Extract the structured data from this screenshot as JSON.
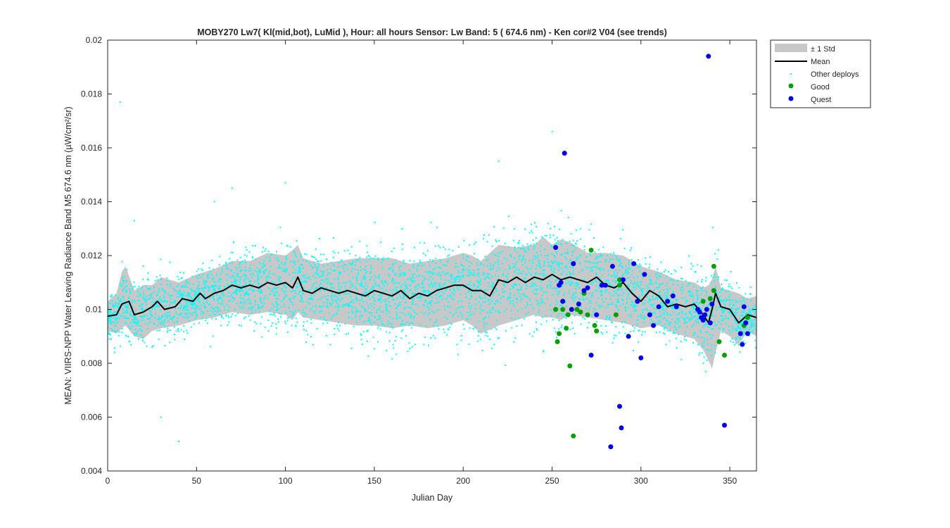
{
  "chart_data": {
    "type": "scatter",
    "title": "MOBY270   Lw7( Kl(mid,bot), LuMid ),   Hour: all hours  Sensor: Lw Band: 5 ( 674.6 nm)  - Ken cor#2 V04 (see trends)",
    "xlabel": "Julian Day",
    "ylabel": "MEAN: VIIRS-NPP Water Leaving Radiance Band M5 674.6 nm (µW/cm²/sr)",
    "xlim": [
      0,
      365
    ],
    "ylim": [
      0.004,
      0.02
    ],
    "xticks": [
      0,
      50,
      100,
      150,
      200,
      250,
      300,
      350
    ],
    "yticks": [
      0.004,
      0.006,
      0.008,
      0.01,
      0.012,
      0.014,
      0.016,
      0.018,
      0.02
    ],
    "xtick_labels": [
      "0",
      "50",
      "100",
      "150",
      "200",
      "250",
      "300",
      "350"
    ],
    "ytick_labels": [
      "0.004",
      "0.006",
      "0.008",
      "0.01",
      "0.012",
      "0.014",
      "0.016",
      "0.018",
      "0.02"
    ],
    "legend": {
      "placement": "outside-top-right",
      "entries": [
        "± 1 Std",
        "Mean",
        "Other deploys",
        "Good",
        "Quest"
      ]
    },
    "colors": {
      "std_band": "#c8c8c8",
      "mean": "#000000",
      "other": "#00ffff",
      "good": "#00a000",
      "quest": "#0000ee"
    },
    "mean": {
      "x": [
        0,
        5,
        8,
        12,
        15,
        20,
        25,
        28,
        32,
        38,
        42,
        48,
        52,
        55,
        60,
        65,
        70,
        75,
        80,
        85,
        90,
        95,
        100,
        104,
        107,
        110,
        115,
        120,
        125,
        130,
        135,
        140,
        145,
        150,
        155,
        160,
        165,
        170,
        175,
        180,
        185,
        190,
        195,
        200,
        205,
        210,
        215,
        220,
        225,
        230,
        235,
        240,
        245,
        250,
        255,
        260,
        265,
        270,
        275,
        280,
        285,
        290,
        295,
        300,
        305,
        310,
        315,
        320,
        325,
        330,
        335,
        338,
        340,
        342,
        345,
        350,
        355,
        360,
        365
      ],
      "y": [
        0.00975,
        0.0098,
        0.0102,
        0.0103,
        0.0098,
        0.0099,
        0.0101,
        0.0103,
        0.01,
        0.0101,
        0.0104,
        0.0103,
        0.0106,
        0.0104,
        0.0106,
        0.0107,
        0.0109,
        0.0108,
        0.0109,
        0.0108,
        0.011,
        0.0109,
        0.011,
        0.0108,
        0.0112,
        0.0107,
        0.0106,
        0.0108,
        0.0107,
        0.0106,
        0.0107,
        0.0106,
        0.0105,
        0.0107,
        0.0106,
        0.0105,
        0.0107,
        0.0104,
        0.0106,
        0.0105,
        0.0107,
        0.0108,
        0.0109,
        0.0109,
        0.0107,
        0.0107,
        0.0105,
        0.0111,
        0.011,
        0.0112,
        0.011,
        0.0112,
        0.0111,
        0.0113,
        0.0111,
        0.0112,
        0.0111,
        0.011,
        0.0112,
        0.0109,
        0.0108,
        0.011,
        0.0106,
        0.0103,
        0.0107,
        0.0105,
        0.0101,
        0.0102,
        0.0101,
        0.0102,
        0.0098,
        0.0095,
        0.01,
        0.0106,
        0.0101,
        0.01,
        0.0095,
        0.0098,
        0.0097
      ]
    },
    "std": {
      "x": [
        0,
        5,
        8,
        10,
        15,
        20,
        25,
        30,
        40,
        50,
        60,
        70,
        80,
        90,
        100,
        104,
        107,
        110,
        120,
        130,
        140,
        150,
        160,
        170,
        180,
        190,
        200,
        205,
        210,
        220,
        230,
        240,
        245,
        250,
        255,
        260,
        270,
        280,
        290,
        300,
        310,
        320,
        330,
        335,
        338,
        340,
        342,
        345,
        350,
        355,
        360,
        365
      ],
      "lower": [
        0.0092,
        0.0091,
        0.0093,
        0.0094,
        0.009,
        0.0089,
        0.0092,
        0.0093,
        0.0094,
        0.0096,
        0.0097,
        0.0099,
        0.0098,
        0.0099,
        0.0098,
        0.0096,
        0.0099,
        0.0097,
        0.0096,
        0.0095,
        0.0094,
        0.0094,
        0.0093,
        0.0094,
        0.0093,
        0.0094,
        0.0096,
        0.0094,
        0.0091,
        0.0094,
        0.0096,
        0.0098,
        0.0097,
        0.0097,
        0.0096,
        0.0098,
        0.0097,
        0.0096,
        0.0095,
        0.0093,
        0.0094,
        0.0091,
        0.0089,
        0.0085,
        0.0081,
        0.0078,
        0.0084,
        0.0092,
        0.009,
        0.0087,
        0.0092,
        0.009
      ],
      "upper": [
        0.0103,
        0.0106,
        0.0114,
        0.0116,
        0.0107,
        0.0109,
        0.0109,
        0.0112,
        0.011,
        0.0113,
        0.0115,
        0.0118,
        0.0118,
        0.0121,
        0.012,
        0.0122,
        0.0124,
        0.0119,
        0.0117,
        0.0118,
        0.0119,
        0.0119,
        0.0119,
        0.0117,
        0.0118,
        0.0119,
        0.0121,
        0.012,
        0.0118,
        0.0124,
        0.0123,
        0.0124,
        0.0127,
        0.0124,
        0.0126,
        0.0125,
        0.0121,
        0.0121,
        0.012,
        0.0116,
        0.0114,
        0.0111,
        0.011,
        0.0108,
        0.0109,
        0.0111,
        0.0116,
        0.0108,
        0.0107,
        0.0106,
        0.0104,
        0.0105
      ]
    },
    "good": {
      "x": [
        252,
        253,
        254,
        256,
        256,
        258,
        259,
        260,
        262,
        262,
        264,
        266,
        268,
        270,
        272,
        274,
        275,
        286,
        288,
        288,
        335,
        339,
        341,
        341,
        344,
        347,
        358,
        360
      ],
      "y": [
        0.01,
        0.0088,
        0.0091,
        0.0103,
        0.01,
        0.0093,
        0.0098,
        0.0079,
        0.0053,
        0.0117,
        0.01,
        0.0099,
        0.0106,
        0.0098,
        0.0122,
        0.0094,
        0.0092,
        0.0098,
        0.0111,
        0.0109,
        0.0103,
        0.0104,
        0.0116,
        0.0107,
        0.0088,
        0.0083,
        0.0094,
        0.0097
      ]
    },
    "quest": {
      "x": [
        252,
        254,
        255,
        256,
        257,
        261,
        262,
        265,
        268,
        270,
        272,
        275,
        278,
        280,
        283,
        284,
        288,
        289,
        290,
        293,
        296,
        298,
        300,
        302,
        305,
        307,
        310,
        315,
        318,
        320,
        332,
        333,
        334,
        335,
        336,
        337,
        338,
        339,
        340,
        347,
        356,
        357,
        358,
        359,
        360
      ],
      "y": [
        0.0123,
        0.0109,
        0.011,
        0.0103,
        0.0158,
        0.01,
        0.0117,
        0.0102,
        0.0107,
        0.0108,
        0.0083,
        0.0098,
        0.0109,
        0.0109,
        0.0049,
        0.0116,
        0.0064,
        0.0056,
        0.0111,
        0.009,
        0.0117,
        0.0103,
        0.0082,
        0.0113,
        0.0098,
        0.0094,
        0.0101,
        0.0103,
        0.0105,
        0.0101,
        0.01,
        0.0099,
        0.0097,
        0.0096,
        0.0098,
        0.01,
        0.0194,
        0.0095,
        0.0102,
        0.0057,
        0.0091,
        0.0087,
        0.0101,
        0.0095,
        0.0091
      ]
    },
    "other_deploys": {
      "description_note": "dense cloud of several thousand points",
      "x_sample": [
        1,
        3,
        5,
        7,
        9,
        12,
        15,
        20,
        25,
        30,
        35,
        40,
        45,
        50,
        60,
        70,
        80,
        90,
        100,
        110,
        120,
        130,
        140,
        150,
        160,
        170,
        180,
        190,
        200,
        210,
        220,
        230,
        240,
        250,
        260,
        270,
        280,
        290,
        300,
        310,
        320,
        330,
        340,
        350,
        360,
        365
      ],
      "y_sample": [
        0.0098,
        0.0101,
        0.0095,
        0.0177,
        0.0104,
        0.0088,
        0.0133,
        0.0099,
        0.0086,
        0.006,
        0.0105,
        0.0051,
        0.011,
        0.0104,
        0.014,
        0.0145,
        0.0109,
        0.0112,
        0.0147,
        0.0106,
        0.0108,
        0.0104,
        0.0111,
        0.0102,
        0.0106,
        0.0109,
        0.0098,
        0.0107,
        0.0112,
        0.0104,
        0.0155,
        0.0115,
        0.0111,
        0.0166,
        0.0109,
        0.0104,
        0.0107,
        0.0102,
        0.0098,
        0.0101,
        0.0098,
        0.0097,
        0.0102,
        0.0099,
        0.0098,
        0.0094
      ]
    }
  }
}
